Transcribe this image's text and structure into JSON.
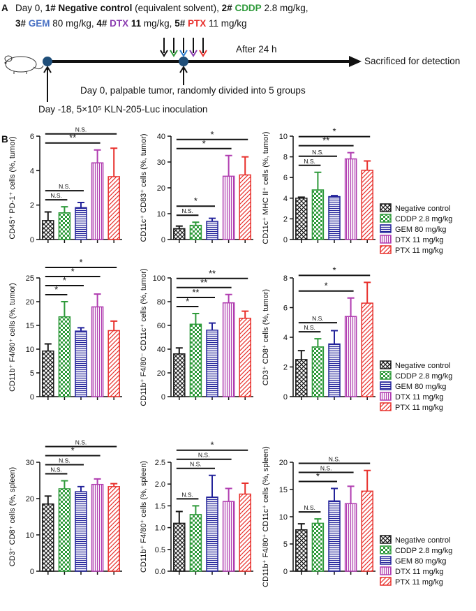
{
  "panel_a": {
    "label": "A",
    "line1": [
      "Day 0, ",
      "1# Negative control",
      " (equivalent solvent), ",
      "2#",
      " CDDP",
      " 2.8 mg/kg,"
    ],
    "line2": [
      "3#",
      " GEM",
      " 80 mg/kg, ",
      "4#",
      " DTX",
      " 11",
      " mg/kg, ",
      "5#",
      " PTX",
      " 11 mg/kg"
    ],
    "after": "After 24 h",
    "end": "Sacrificed for detection",
    "day0": "Day 0, palpable tumor, randomly divided into 5 groups",
    "day_minus18": "Day -18, 5×10⁵ KLN-205-Luc inoculation"
  },
  "panel_b": {
    "label": "B"
  },
  "series_legend": [
    {
      "name": "Negative control",
      "color": "#1a1a1a"
    },
    {
      "name": "CDDP 2.8 mg/kg",
      "color": "#2e9a3a"
    },
    {
      "name": "GEM 80 mg/kg",
      "color": "#23239a"
    },
    {
      "name": "DTX 11 mg/kg",
      "color": "#b03cb0"
    },
    {
      "name": "PTX 11 mg/kg",
      "color": "#e8302c"
    }
  ],
  "chart_data": [
    {
      "type": "bar",
      "ylabel": "CD45⁺ PD-1⁺ cells (%, tumor)",
      "ylim": [
        0,
        6
      ],
      "yticks": [
        0,
        2,
        4,
        6
      ],
      "values": [
        1.1,
        1.55,
        1.85,
        4.45,
        3.65
      ],
      "errors": [
        0.5,
        0.35,
        0.3,
        0.75,
        1.65
      ],
      "brackets": [
        {
          "from": 0,
          "to": 1,
          "label": "N.S."
        },
        {
          "from": 0,
          "to": 2,
          "label": "N.S."
        },
        {
          "from": 0,
          "to": 3,
          "label": "**"
        },
        {
          "from": 0,
          "to": 4,
          "label": "N.S."
        }
      ]
    },
    {
      "type": "bar",
      "ylabel": "CD11c⁺ CD83⁺ cells (%, tumor)",
      "ylim": [
        0,
        40
      ],
      "yticks": [
        0,
        10,
        20,
        30,
        40
      ],
      "values": [
        4.2,
        5.5,
        7.0,
        24.5,
        25
      ],
      "errors": [
        1.0,
        1.2,
        1.2,
        8,
        7
      ],
      "brackets": [
        {
          "from": 0,
          "to": 1,
          "label": "N.S."
        },
        {
          "from": 0,
          "to": 2,
          "label": "*"
        },
        {
          "from": 0,
          "to": 3,
          "label": "*"
        },
        {
          "from": 0,
          "to": 4,
          "label": "*"
        }
      ]
    },
    {
      "type": "bar",
      "ylabel": "CD11c⁺ MHC II⁺ cells (%, tumor)",
      "ylim": [
        0,
        10
      ],
      "yticks": [
        0,
        2,
        4,
        6,
        8,
        10
      ],
      "values": [
        4.0,
        4.8,
        4.15,
        7.8,
        6.7
      ],
      "errors": [
        0.1,
        1.7,
        0.1,
        0.6,
        0.9
      ],
      "legend": true,
      "brackets": [
        {
          "from": 0,
          "to": 1,
          "label": "N.S."
        },
        {
          "from": 0,
          "to": 2,
          "label": "N.S."
        },
        {
          "from": 0,
          "to": 3,
          "label": "**"
        },
        {
          "from": 0,
          "to": 4,
          "label": "*"
        }
      ]
    },
    {
      "type": "bar",
      "ylabel": "CD11b⁺ F4/80⁺ cells (%, tumor)",
      "ylim": [
        0,
        25
      ],
      "yticks": [
        0,
        5,
        10,
        15,
        20,
        25
      ],
      "values": [
        9.6,
        16.8,
        13.8,
        18.9,
        13.9
      ],
      "errors": [
        1.5,
        3.2,
        0.7,
        2.7,
        2
      ],
      "brackets": [
        {
          "from": 0,
          "to": 1,
          "label": "*"
        },
        {
          "from": 0,
          "to": 2,
          "label": "*"
        },
        {
          "from": 0,
          "to": 3,
          "label": "*"
        },
        {
          "from": 0,
          "to": 4,
          "label": "*"
        }
      ]
    },
    {
      "type": "bar",
      "ylabel": "CD11b⁺ F4/80⁻ CD11c⁺ cells (%, tumor)",
      "ylim": [
        0,
        100
      ],
      "yticks": [
        0,
        20,
        40,
        60,
        80,
        100
      ],
      "values": [
        36,
        61,
        56,
        79,
        66
      ],
      "errors": [
        5,
        9,
        6,
        7,
        6
      ],
      "brackets": [
        {
          "from": 0,
          "to": 1,
          "label": "*"
        },
        {
          "from": 0,
          "to": 2,
          "label": "**"
        },
        {
          "from": 0,
          "to": 3,
          "label": "**"
        },
        {
          "from": 0,
          "to": 4,
          "label": "**"
        }
      ]
    },
    {
      "type": "bar",
      "ylabel": "CD3⁺ CD8⁺ cells (%, tumor)",
      "ylim": [
        0,
        8
      ],
      "yticks": [
        0,
        2,
        4,
        6,
        8
      ],
      "values": [
        2.5,
        3.35,
        3.55,
        5.4,
        6.3
      ],
      "errors": [
        0.6,
        0.55,
        0.9,
        1.25,
        1.4
      ],
      "legend": true,
      "brackets": [
        {
          "from": 0,
          "to": 1,
          "label": "N.S."
        },
        {
          "from": 0,
          "to": 2,
          "label": "N.S."
        },
        {
          "from": 0,
          "to": 3,
          "label": "*"
        },
        {
          "from": 0,
          "to": 4,
          "label": "*"
        }
      ]
    },
    {
      "type": "bar",
      "ylabel": "CD3⁺ CD8⁺ cells (%, spleen)",
      "ylim": [
        0,
        30
      ],
      "yticks": [
        0,
        10,
        20,
        30
      ],
      "values": [
        18.5,
        22.7,
        21.9,
        23.9,
        23.3
      ],
      "errors": [
        2.2,
        2.2,
        1.4,
        1.5,
        0.8
      ],
      "brackets": [
        {
          "from": 0,
          "to": 1,
          "label": "N.S."
        },
        {
          "from": 0,
          "to": 2,
          "label": "N.S."
        },
        {
          "from": 0,
          "to": 3,
          "label": "*"
        },
        {
          "from": 0,
          "to": 4,
          "label": "N.S."
        }
      ]
    },
    {
      "type": "bar",
      "ylabel": "CD11b⁺ F4/80⁺ cells (%, spleen)",
      "ylim": [
        0,
        2.5
      ],
      "yticks": [
        {
          "value": 0,
          "label": "0.0"
        },
        0.5,
        {
          "value": 1,
          "label": "1.0"
        },
        1.5,
        {
          "value": 2,
          "label": "2.0"
        },
        2.5
      ],
      "values": [
        1.1,
        1.3,
        1.7,
        1.6,
        1.77
      ],
      "errors": [
        0.27,
        0.2,
        0.5,
        0.3,
        0.25
      ],
      "brackets": [
        {
          "from": 0,
          "to": 1,
          "label": "N.S."
        },
        {
          "from": 0,
          "to": 2,
          "label": "N.S."
        },
        {
          "from": 0,
          "to": 3,
          "label": "N.S."
        },
        {
          "from": 0,
          "to": 4,
          "label": "*"
        }
      ]
    },
    {
      "type": "bar",
      "ylabel": "CD11b⁺ F4/80⁺ CD11c⁺ cells (%, spleen)",
      "ylim": [
        0,
        20
      ],
      "yticks": [
        0,
        5,
        10,
        15,
        20
      ],
      "values": [
        7.6,
        8.8,
        12.9,
        12.4,
        14.7
      ],
      "errors": [
        1.1,
        0.8,
        2.3,
        3.2,
        3.8
      ],
      "legend": true,
      "brackets": [
        {
          "from": 0,
          "to": 1,
          "label": "N.S."
        },
        {
          "from": 0,
          "to": 2,
          "label": "*"
        },
        {
          "from": 0,
          "to": 3,
          "label": "N.S."
        },
        {
          "from": 0,
          "to": 4,
          "label": "N.S."
        }
      ]
    }
  ]
}
